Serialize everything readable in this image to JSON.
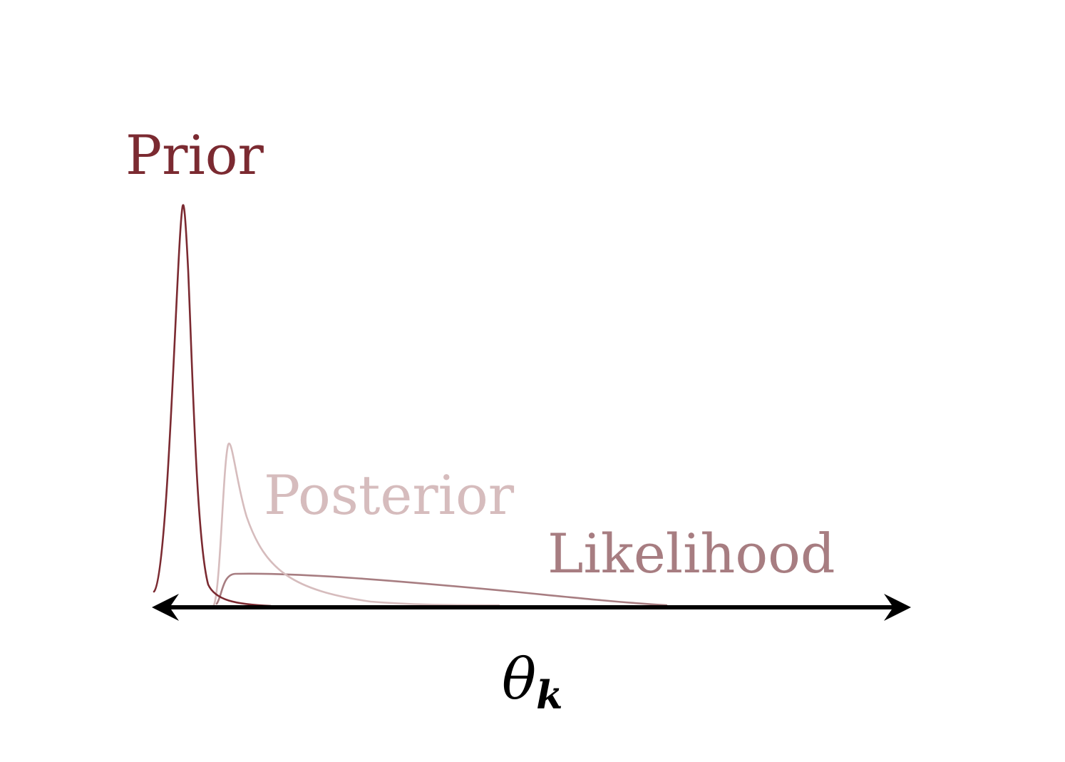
{
  "diagram": {
    "labels": {
      "prior": "Prior",
      "posterior": "Posterior",
      "likelihood": "Likelihood"
    },
    "axis": {
      "symbol": "θ",
      "subscript": "k",
      "double_headed_arrow": true
    },
    "colors": {
      "prior": "#7b2a31",
      "posterior": "#d6bcbd",
      "likelihood": "#a77d81",
      "axis": "#000000"
    }
  }
}
